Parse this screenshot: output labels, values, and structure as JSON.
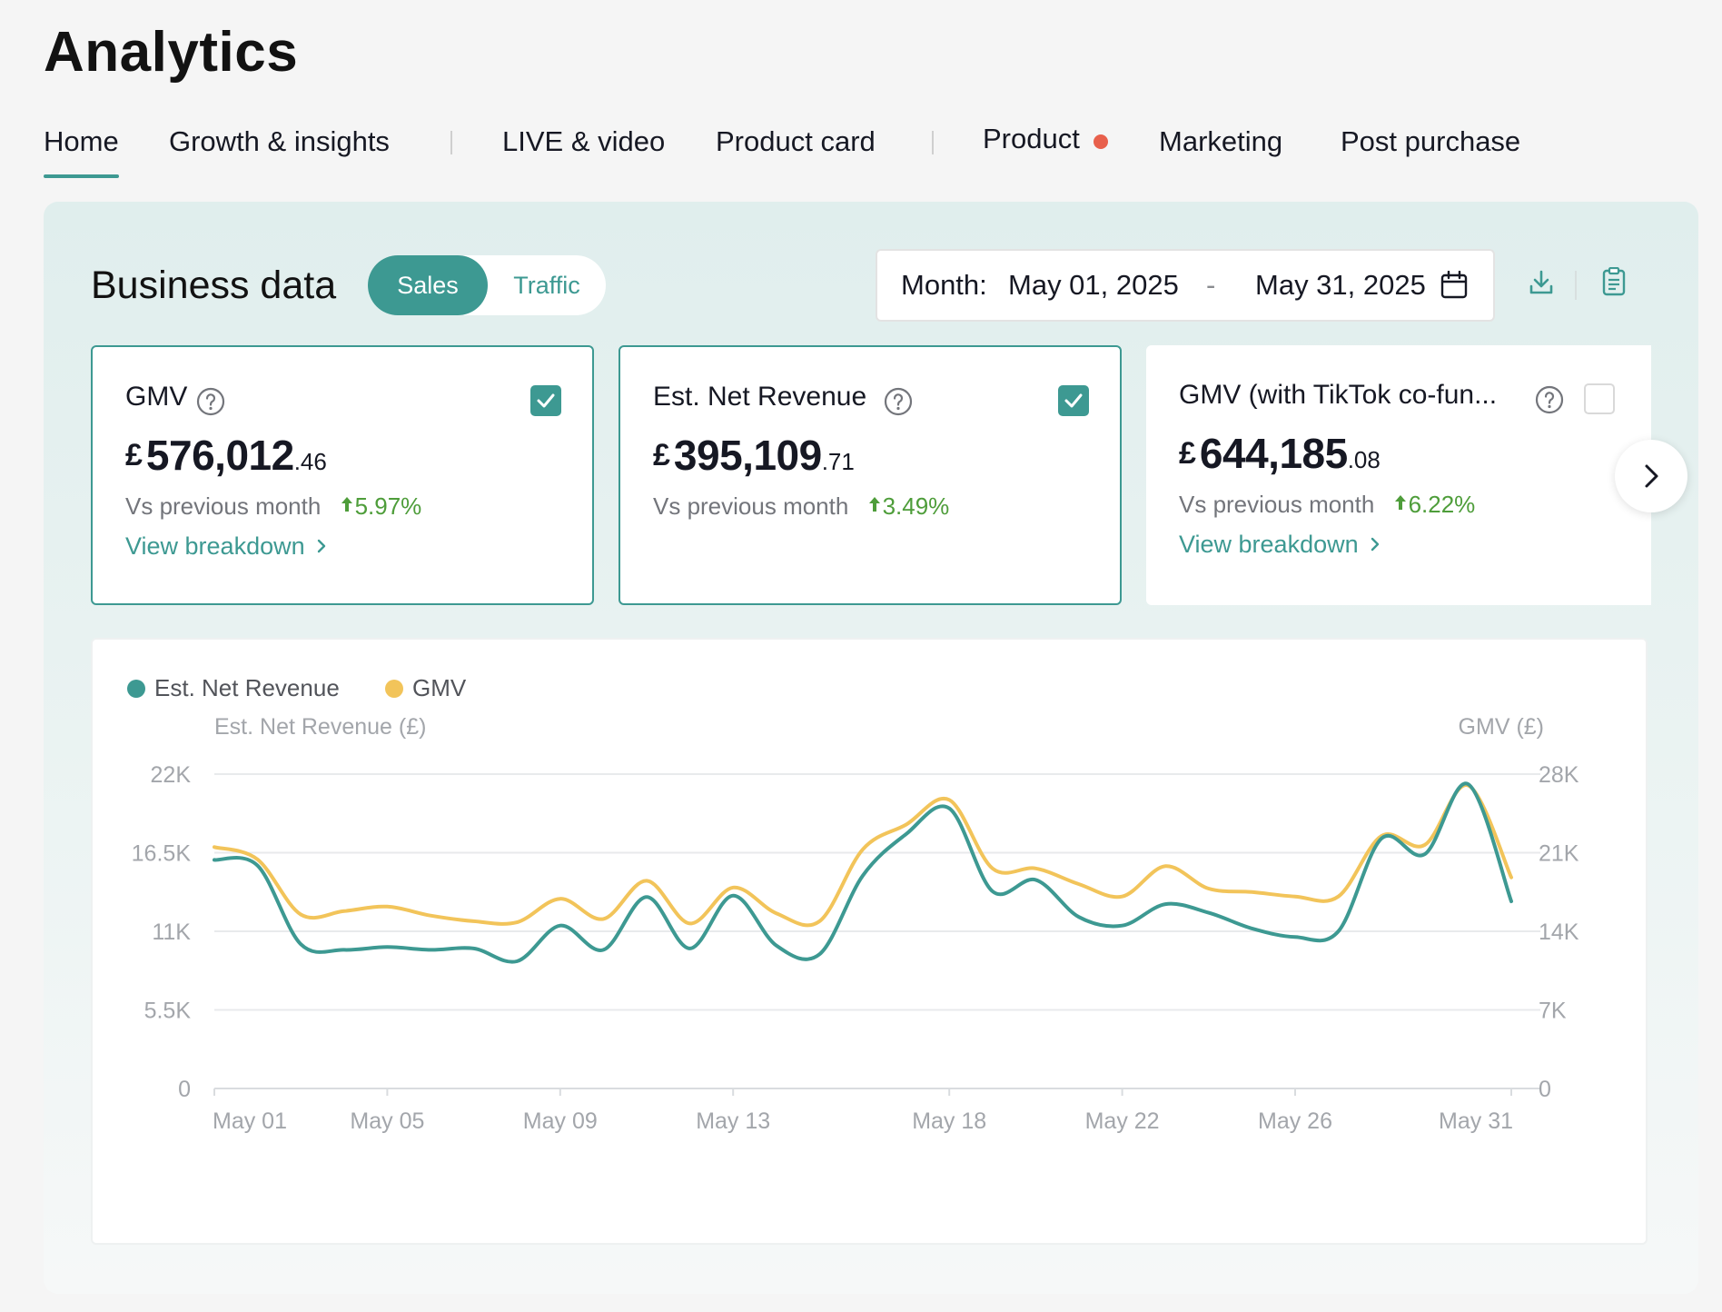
{
  "page": {
    "title": "Analytics"
  },
  "tabs": [
    {
      "label": "Home",
      "active": true
    },
    {
      "label": "Growth & insights"
    },
    {
      "label": "LIVE & video"
    },
    {
      "label": "Product card"
    },
    {
      "label": "Product",
      "badge": "red-dot"
    },
    {
      "label": "Marketing"
    },
    {
      "label": "Post purchase"
    }
  ],
  "business": {
    "title": "Business data",
    "toggle": {
      "sales": "Sales",
      "traffic": "Traffic",
      "selected": "Sales"
    },
    "date": {
      "label": "Month:",
      "start": "May 01, 2025",
      "sep": "-",
      "end": "May 31, 2025"
    }
  },
  "cards": [
    {
      "title": "GMV",
      "currency": "£",
      "int": "576,012",
      "dec": ".46",
      "compare": "Vs previous month",
      "change": "5.97%",
      "link": "View breakdown",
      "checked": true
    },
    {
      "title": "Est. Net Revenue",
      "currency": "£",
      "int": "395,109",
      "dec": ".71",
      "compare": "Vs previous month",
      "change": "3.49%",
      "checked": true
    },
    {
      "title": "GMV (with TikTok co-fun...",
      "currency": "£",
      "int": "644,185",
      "dec": ".08",
      "compare": "Vs previous month",
      "change": "6.22%",
      "link": "View breakdown",
      "checked": false
    }
  ],
  "colors": {
    "teal": "#3d9992",
    "gold": "#f2c45a",
    "up": "#4e9d3a"
  },
  "chart_data": {
    "type": "line",
    "legend": [
      "Est. Net Revenue",
      "GMV"
    ],
    "ylabel_left": "Est. Net Revenue (£)",
    "ylabel_right": "GMV (£)",
    "ylim_left": [
      0,
      22000
    ],
    "ylim_right": [
      0,
      28000
    ],
    "yticks_left": [
      "0",
      "5.5K",
      "11K",
      "16.5K",
      "22K"
    ],
    "yticks_right": [
      "0",
      "7K",
      "14K",
      "21K",
      "28K"
    ],
    "xticks": [
      "May 01",
      "May 05",
      "May 09",
      "May 13",
      "May 18",
      "May 22",
      "May 26",
      "May 31"
    ],
    "x": [
      "May 01",
      "May 02",
      "May 03",
      "May 04",
      "May 05",
      "May 06",
      "May 07",
      "May 08",
      "May 09",
      "May 10",
      "May 11",
      "May 12",
      "May 13",
      "May 14",
      "May 15",
      "May 16",
      "May 17",
      "May 18",
      "May 19",
      "May 20",
      "May 21",
      "May 22",
      "May 23",
      "May 24",
      "May 25",
      "May 26",
      "May 27",
      "May 28",
      "May 29",
      "May 30",
      "May 31"
    ],
    "series": [
      {
        "name": "Est. Net Revenue",
        "axis": "left",
        "color": "#3d9992",
        "values": [
          16000,
          15600,
          10100,
          9700,
          9900,
          9700,
          9800,
          8900,
          11400,
          9700,
          13400,
          9800,
          13500,
          10000,
          9400,
          14900,
          17800,
          19600,
          13800,
          14600,
          12000,
          11400,
          12900,
          12300,
          11200,
          10600,
          11000,
          17500,
          16400,
          21300,
          13100
        ]
      },
      {
        "name": "GMV",
        "axis": "right",
        "color": "#f2c45a",
        "values": [
          21500,
          20400,
          15500,
          15800,
          16200,
          15400,
          14900,
          14800,
          16900,
          15100,
          18500,
          14700,
          17900,
          15600,
          14900,
          21300,
          23500,
          25700,
          19600,
          19600,
          18200,
          17100,
          19800,
          17800,
          17500,
          17100,
          17100,
          22500,
          21700,
          27000,
          18800
        ]
      }
    ]
  }
}
